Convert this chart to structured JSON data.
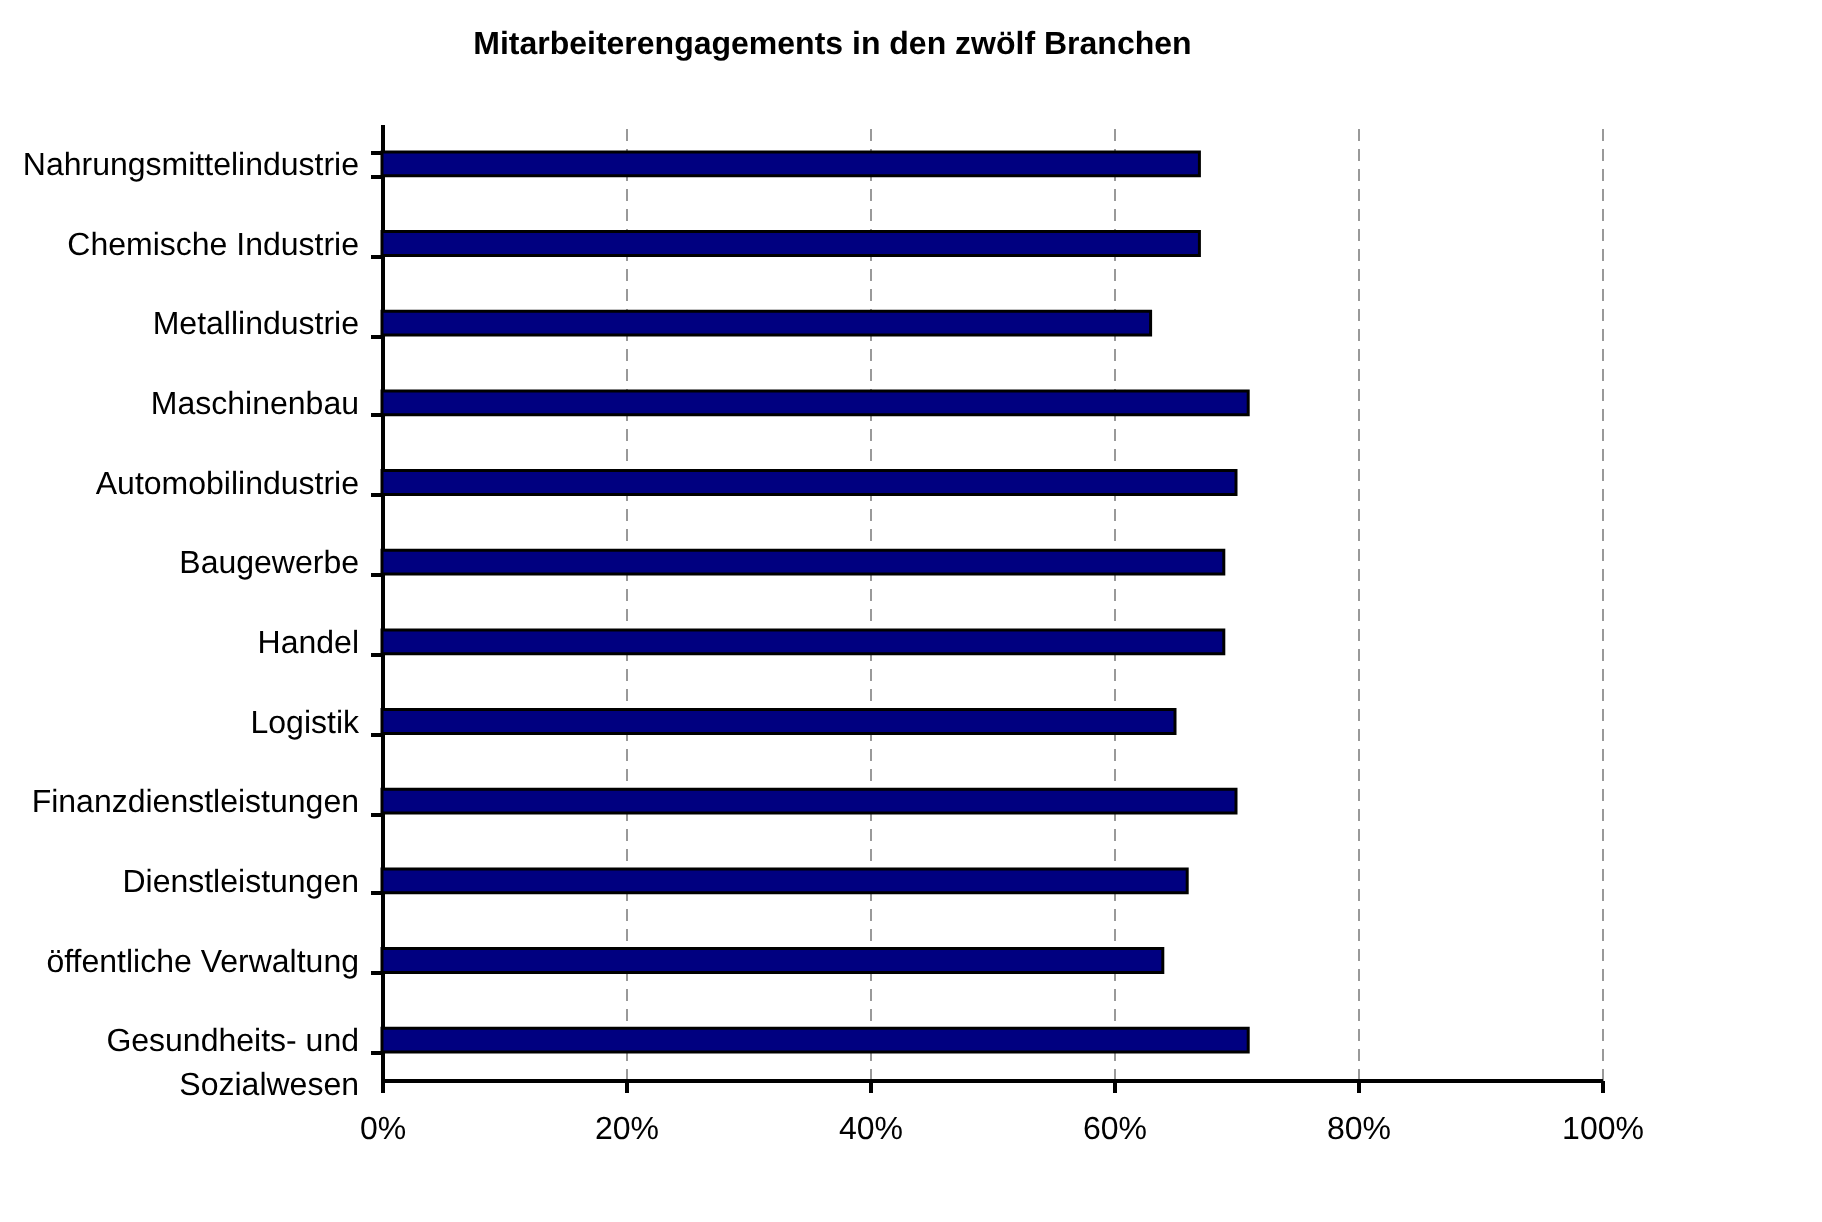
{
  "chart_data": {
    "type": "bar",
    "orientation": "horizontal",
    "title": "Mitarbeiterengagements in den zwölf Branchen",
    "categories": [
      "Nahrungsmittelindustrie",
      "Chemische Industrie",
      "Metallindustrie",
      "Maschinenbau",
      "Automobilindustrie",
      "Baugewerbe",
      "Handel",
      "Logistik",
      "Finanzdienstleistungen",
      "Dienstleistungen",
      "öffentliche Verwaltung",
      "Gesundheits- und Sozialwesen"
    ],
    "values": [
      67,
      67,
      63,
      71,
      70,
      69,
      69,
      65,
      70,
      66,
      64,
      71
    ],
    "color": "#000080",
    "xlim": [
      0,
      100
    ],
    "xticks": [
      {
        "value": 0,
        "label": "0%"
      },
      {
        "value": 20,
        "label": "20%"
      },
      {
        "value": 40,
        "label": "40%"
      },
      {
        "value": 60,
        "label": "60%"
      },
      {
        "value": 80,
        "label": "80%"
      },
      {
        "value": 100,
        "label": "100%"
      }
    ],
    "grid": "x"
  }
}
